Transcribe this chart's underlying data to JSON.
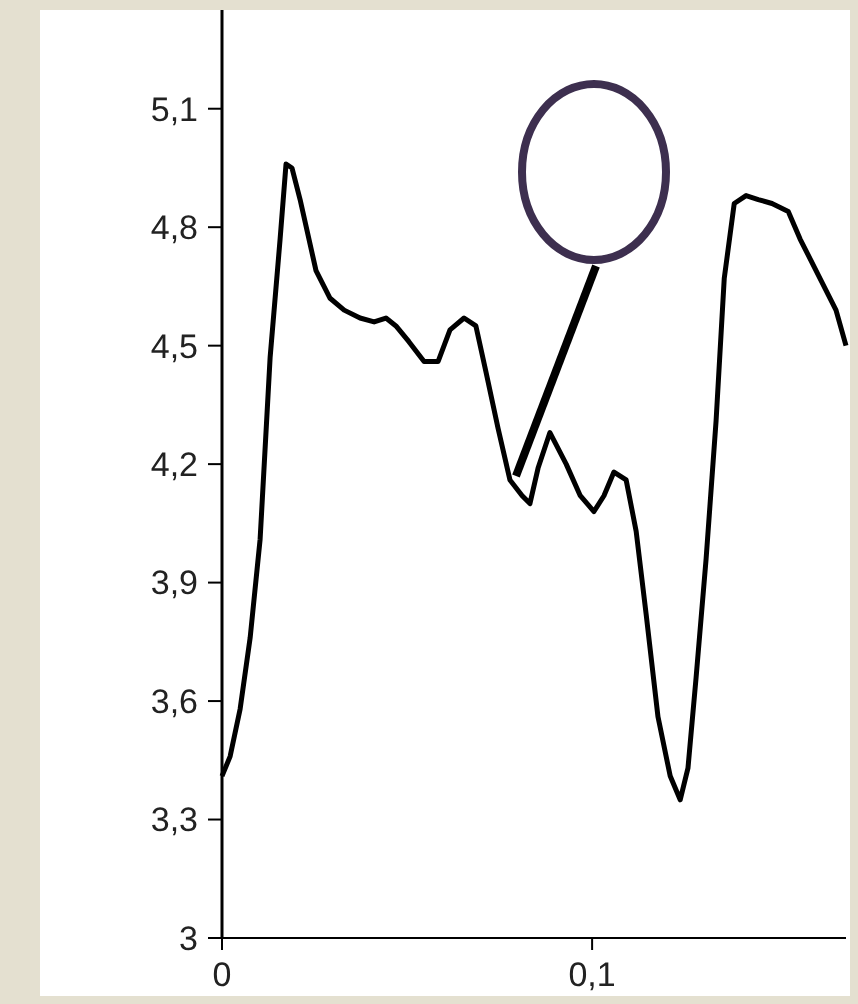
{
  "chart_data": {
    "type": "line",
    "x": [
      0,
      0.0022,
      0.0049,
      0.0076,
      0.0103,
      0.013,
      0.0157,
      0.0173,
      0.0189,
      0.0211,
      0.0254,
      0.0292,
      0.033,
      0.0373,
      0.0411,
      0.0443,
      0.047,
      0.0505,
      0.0546,
      0.0584,
      0.0616,
      0.0654,
      0.0686,
      0.0714,
      0.0746,
      0.0778,
      0.0811,
      0.0832,
      0.0854,
      0.0886,
      0.093,
      0.0968,
      0.1005,
      0.1032,
      0.1059,
      0.1092,
      0.1119,
      0.1146,
      0.1178,
      0.1211,
      0.1238,
      0.1259,
      0.1281,
      0.1308,
      0.1335,
      0.1357,
      0.1384,
      0.1416,
      0.1449,
      0.1486,
      0.153,
      0.1562,
      0.1616,
      0.1659,
      0.1686
    ],
    "series": [
      {
        "color": "#000000",
        "values": [
          3.41,
          3.46,
          3.58,
          3.76,
          4.01,
          4.47,
          4.77,
          4.96,
          4.95,
          4.87,
          4.69,
          4.62,
          4.59,
          4.57,
          4.56,
          4.57,
          4.55,
          4.51,
          4.46,
          4.46,
          4.54,
          4.57,
          4.55,
          4.43,
          4.29,
          4.16,
          4.12,
          4.1,
          4.19,
          4.28,
          4.2,
          4.12,
          4.08,
          4.12,
          4.18,
          4.16,
          4.03,
          3.82,
          3.56,
          3.41,
          3.35,
          3.43,
          3.66,
          3.96,
          4.31,
          4.67,
          4.86,
          4.88,
          4.87,
          4.86,
          4.84,
          4.77,
          4.67,
          4.59,
          4.5
        ]
      }
    ],
    "xlim": [
      0,
      0.1686
    ],
    "ylim": [
      3,
      5.35
    ],
    "xticks": [
      0,
      {
        "value": 0.1,
        "label": "0,1"
      }
    ],
    "yticks": [
      3,
      {
        "value": 3.3,
        "label": "3,3"
      },
      {
        "value": 3.6,
        "label": "3,6"
      },
      {
        "value": 3.9,
        "label": "3,9"
      },
      {
        "value": 4.2,
        "label": "4,2"
      },
      {
        "value": 4.5,
        "label": "4,5"
      },
      {
        "value": 4.8,
        "label": "4,8"
      },
      {
        "value": 5.1,
        "label": "5,1"
      }
    ],
    "grid": false,
    "line_style": "solid",
    "marker": "none"
  }
}
